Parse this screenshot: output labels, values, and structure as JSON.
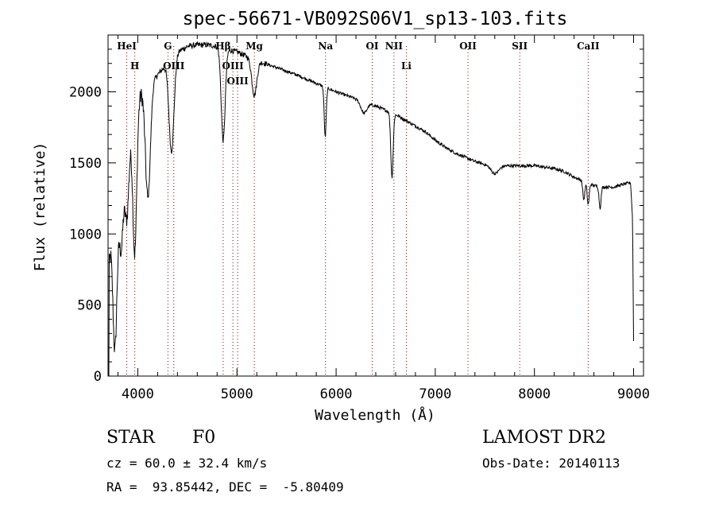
{
  "chart_data": {
    "type": "line",
    "title": "spec-56671-VB092S06V1_sp13-103.fits",
    "xlabel": "Wavelength (Å)",
    "ylabel": "Flux (relative)",
    "xlim": [
      3700,
      9100
    ],
    "ylim": [
      0,
      2400
    ],
    "xticks": [
      4000,
      5000,
      6000,
      7000,
      8000,
      9000
    ],
    "yticks": [
      0,
      500,
      1000,
      1500,
      2000
    ],
    "grid": false,
    "line_color": "#000000",
    "marker_color": "#8b0000",
    "continuum": [
      [
        3700,
        0
      ],
      [
        3710,
        800
      ],
      [
        3730,
        950
      ],
      [
        3760,
        1050
      ],
      [
        3800,
        1200
      ],
      [
        3850,
        1500
      ],
      [
        3900,
        1650
      ],
      [
        3950,
        1800
      ],
      [
        4000,
        1950
      ],
      [
        4050,
        2020
      ],
      [
        4100,
        2050
      ],
      [
        4200,
        2120
      ],
      [
        4300,
        2200
      ],
      [
        4400,
        2280
      ],
      [
        4500,
        2320
      ],
      [
        4600,
        2330
      ],
      [
        4700,
        2330
      ],
      [
        4800,
        2320
      ],
      [
        4900,
        2300
      ],
      [
        5000,
        2280
      ],
      [
        5100,
        2250
      ],
      [
        5200,
        2220
      ],
      [
        5400,
        2170
      ],
      [
        5600,
        2120
      ],
      [
        5800,
        2060
      ],
      [
        6000,
        2000
      ],
      [
        6200,
        1950
      ],
      [
        6400,
        1900
      ],
      [
        6500,
        1870
      ],
      [
        6600,
        1840
      ],
      [
        6700,
        1800
      ],
      [
        6800,
        1760
      ],
      [
        6900,
        1720
      ],
      [
        7000,
        1660
      ],
      [
        7100,
        1610
      ],
      [
        7200,
        1570
      ],
      [
        7300,
        1540
      ],
      [
        7400,
        1510
      ],
      [
        7500,
        1490
      ],
      [
        7700,
        1480
      ],
      [
        8000,
        1480
      ],
      [
        8200,
        1460
      ],
      [
        8300,
        1440
      ],
      [
        8400,
        1400
      ],
      [
        8500,
        1370
      ],
      [
        8600,
        1340
      ],
      [
        8700,
        1330
      ],
      [
        8800,
        1330
      ],
      [
        8900,
        1350
      ],
      [
        8970,
        1360
      ],
      [
        8990,
        1100
      ],
      [
        9000,
        250
      ]
    ],
    "absorption": [
      [
        3770,
        900,
        20
      ],
      [
        3835,
        500,
        20
      ],
      [
        3890,
        500,
        20
      ],
      [
        3970,
        1000,
        20
      ],
      [
        4102,
        800,
        25
      ],
      [
        4340,
        650,
        25
      ],
      [
        4861,
        650,
        20
      ],
      [
        5175,
        250,
        25
      ],
      [
        5890,
        350,
        10
      ],
      [
        6563,
        450,
        12
      ],
      [
        6280,
        80,
        30
      ],
      [
        7600,
        60,
        40
      ],
      [
        8498,
        130,
        10
      ],
      [
        8542,
        150,
        10
      ],
      [
        8662,
        150,
        10
      ]
    ],
    "line_markers": [
      {
        "label": "H",
        "x": 3970
      },
      {
        "label": "HeI",
        "x": 3889
      },
      {
        "label": "OIII",
        "x": 4363
      },
      {
        "label": "G",
        "x": 4304
      },
      {
        "label": "Hβ",
        "x": 4861
      },
      {
        "label": "OIII",
        "x": 4959
      },
      {
        "label": "OIII",
        "x": 5007
      },
      {
        "label": "Mg",
        "x": 5175
      },
      {
        "label": "Na",
        "x": 5893
      },
      {
        "label": "OI",
        "x": 6364
      },
      {
        "label": "NII",
        "x": 6583
      },
      {
        "label": "Li",
        "x": 6708
      },
      {
        "label": "OII",
        "x": 7330
      },
      {
        "label": "SII",
        "x": 7852
      },
      {
        "label": "CaII",
        "x": 8542
      }
    ]
  },
  "info": {
    "object_class": "STAR",
    "subclass": "F0",
    "cz": "cz = 60.0 ± 32.4 km/s",
    "ra_dec": "RA =  93.85442, DEC =  -5.80409",
    "survey": "LAMOST DR2",
    "obs_date": "Obs-Date: 20140113"
  }
}
